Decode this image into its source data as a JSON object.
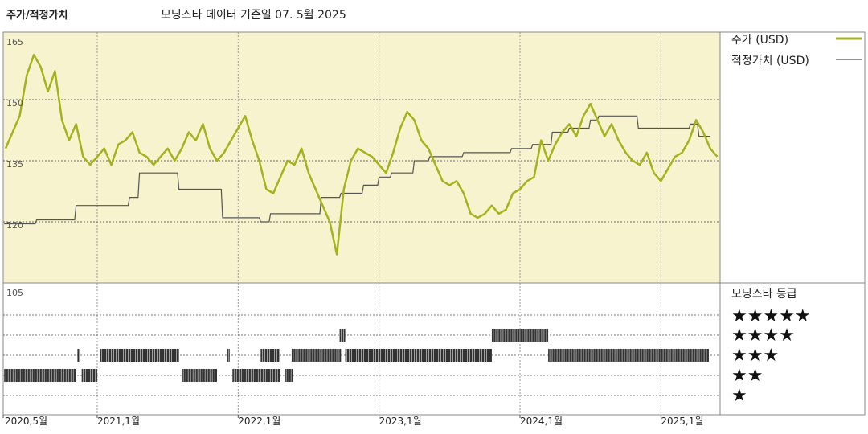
{
  "header": {
    "left_title": "주가/적정가치",
    "subtitle": "모닝스타 데이터 기준일 07. 5월 2025"
  },
  "colors": {
    "price": "#a5b21e",
    "fair": "#555555",
    "panel_bg": "#f7f3cf",
    "bar": "#333333"
  },
  "chart_data": [
    {
      "type": "line",
      "y_ticks": [
        {
          "value": 165,
          "label": "165"
        },
        {
          "value": 150,
          "label": "150"
        },
        {
          "value": 135,
          "label": "135"
        },
        {
          "value": 120,
          "label": "120"
        }
      ],
      "ylim": [
        105,
        165
      ],
      "xlim": [
        2020.333,
        2025.42
      ],
      "x_ticks": [
        {
          "value": 2020.333,
          "label": "2020,5월"
        },
        {
          "value": 2021.0,
          "label": "2021,1월"
        },
        {
          "value": 2022.0,
          "label": "2022,1월"
        },
        {
          "value": 2023.0,
          "label": "2023,1월"
        },
        {
          "value": 2024.0,
          "label": "2024,1월"
        },
        {
          "value": 2025.0,
          "label": "2025,1월"
        }
      ],
      "series": [
        {
          "name": "주가 (USD)",
          "x": [
            2020.35,
            2020.4,
            2020.45,
            2020.5,
            2020.55,
            2020.6,
            2020.65,
            2020.7,
            2020.75,
            2020.8,
            2020.85,
            2020.9,
            2020.95,
            2021.0,
            2021.05,
            2021.1,
            2021.15,
            2021.2,
            2021.25,
            2021.3,
            2021.35,
            2021.4,
            2021.45,
            2021.5,
            2021.55,
            2021.6,
            2021.65,
            2021.7,
            2021.75,
            2021.8,
            2021.85,
            2021.9,
            2021.95,
            2022.0,
            2022.05,
            2022.1,
            2022.15,
            2022.2,
            2022.25,
            2022.3,
            2022.35,
            2022.4,
            2022.45,
            2022.5,
            2022.55,
            2022.6,
            2022.65,
            2022.7,
            2022.75,
            2022.8,
            2022.85,
            2022.9,
            2022.95,
            2023.0,
            2023.05,
            2023.1,
            2023.15,
            2023.2,
            2023.25,
            2023.3,
            2023.35,
            2023.4,
            2023.45,
            2023.5,
            2023.55,
            2023.6,
            2023.65,
            2023.7,
            2023.75,
            2023.8,
            2023.85,
            2023.9,
            2023.95,
            2024.0,
            2024.05,
            2024.1,
            2024.15,
            2024.2,
            2024.25,
            2024.3,
            2024.35,
            2024.4,
            2024.45,
            2024.5,
            2024.55,
            2024.6,
            2024.65,
            2024.7,
            2024.75,
            2024.8,
            2024.85,
            2024.9,
            2024.95,
            2025.0,
            2025.05,
            2025.1,
            2025.15,
            2025.2,
            2025.25,
            2025.3,
            2025.35,
            2025.4
          ],
          "y": [
            138,
            142,
            146,
            156,
            161,
            158,
            152,
            157,
            145,
            140,
            144,
            136,
            134,
            136,
            138,
            134,
            139,
            140,
            142,
            137,
            136,
            134,
            136,
            138,
            135,
            138,
            142,
            140,
            144,
            138,
            135,
            137,
            140,
            143,
            146,
            140,
            135,
            128,
            127,
            131,
            135,
            134,
            138,
            132,
            128,
            124,
            120,
            112,
            128,
            135,
            138,
            137,
            136,
            134,
            132,
            137,
            143,
            147,
            145,
            140,
            138,
            134,
            130,
            129,
            130,
            127,
            122,
            121,
            122,
            124,
            122,
            123,
            127,
            128,
            130,
            131,
            140,
            135,
            139,
            142,
            144,
            141,
            146,
            149,
            145,
            141,
            144,
            140,
            137,
            135,
            134,
            137,
            132,
            130,
            133,
            136,
            137,
            140,
            145,
            142,
            138,
            136
          ]
        },
        {
          "name": "적정가치 (USD)",
          "x": [
            2020.34,
            2020.56,
            2020.57,
            2020.84,
            2020.85,
            2021.22,
            2021.23,
            2021.29,
            2021.3,
            2021.57,
            2021.58,
            2021.88,
            2021.89,
            2022.15,
            2022.16,
            2022.22,
            2022.23,
            2022.58,
            2022.59,
            2022.72,
            2022.73,
            2022.88,
            2022.89,
            2022.99,
            2023.0,
            2023.08,
            2023.09,
            2023.24,
            2023.25,
            2023.35,
            2023.36,
            2023.59,
            2023.6,
            2023.93,
            2023.94,
            2024.08,
            2024.09,
            2024.22,
            2024.23,
            2024.34,
            2024.35,
            2024.49,
            2024.5,
            2024.55,
            2024.56,
            2024.83,
            2024.84,
            2025.2,
            2025.21,
            2025.26,
            2025.27,
            2025.35
          ],
          "y": [
            119.5,
            119.5,
            120.5,
            120.5,
            124,
            124,
            126,
            126,
            132,
            132,
            128,
            128,
            121,
            121,
            120,
            120,
            122,
            122,
            126,
            126,
            127,
            127,
            129,
            129,
            131,
            131,
            132,
            132,
            135,
            135,
            136,
            136,
            137,
            137,
            138,
            138,
            139,
            139,
            142,
            142,
            143,
            143,
            145,
            145,
            146,
            146,
            143,
            143,
            144,
            144,
            141,
            141
          ]
        }
      ]
    },
    {
      "type": "bar",
      "y_ticks": [
        {
          "value": 105,
          "label": "105"
        }
      ],
      "categories": [
        "★★★★★",
        "★★★★",
        "★★★",
        "★★",
        "★"
      ],
      "legend_title": "모닝스타 등급",
      "segments": [
        {
          "rating": 2,
          "start": 2020.34,
          "end": 2020.85
        },
        {
          "rating": 3,
          "start": 2020.86,
          "end": 2020.88
        },
        {
          "rating": 2,
          "start": 2020.89,
          "end": 2021.0
        },
        {
          "rating": 3,
          "start": 2021.02,
          "end": 2021.58
        },
        {
          "rating": 2,
          "start": 2021.6,
          "end": 2021.85
        },
        {
          "rating": 3,
          "start": 2021.92,
          "end": 2021.94
        },
        {
          "rating": 2,
          "start": 2021.96,
          "end": 2022.3
        },
        {
          "rating": 3,
          "start": 2022.16,
          "end": 2022.3
        },
        {
          "rating": 2,
          "start": 2022.33,
          "end": 2022.39
        },
        {
          "rating": 3,
          "start": 2022.38,
          "end": 2022.73
        },
        {
          "rating": 4,
          "start": 2022.72,
          "end": 2022.76
        },
        {
          "rating": 3,
          "start": 2022.76,
          "end": 2023.8
        },
        {
          "rating": 4,
          "start": 2023.8,
          "end": 2024.2
        },
        {
          "rating": 3,
          "start": 2024.2,
          "end": 2025.34
        }
      ]
    }
  ]
}
